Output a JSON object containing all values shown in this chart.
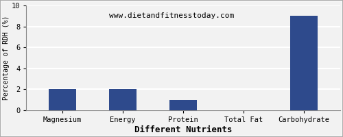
{
  "subtitle": "www.dietandfitnesstoday.com",
  "xlabel": "Different Nutrients",
  "ylabel": "Percentage of RDH (%)",
  "categories": [
    "Magnesium",
    "Energy",
    "Protein",
    "Total Fat",
    "Carbohydrate"
  ],
  "values": [
    2.0,
    2.0,
    1.0,
    0.0,
    9.0
  ],
  "bar_color": "#2e4a8c",
  "ylim": [
    0,
    10
  ],
  "yticks": [
    0,
    2,
    4,
    6,
    8,
    10
  ],
  "background_color": "#f2f2f2",
  "plot_bg_color": "#f2f2f2",
  "grid_color": "#ffffff",
  "title_fontsize": 10,
  "subtitle_fontsize": 8,
  "xlabel_fontsize": 9,
  "ylabel_fontsize": 7,
  "tick_fontsize": 7.5,
  "bar_width": 0.45
}
